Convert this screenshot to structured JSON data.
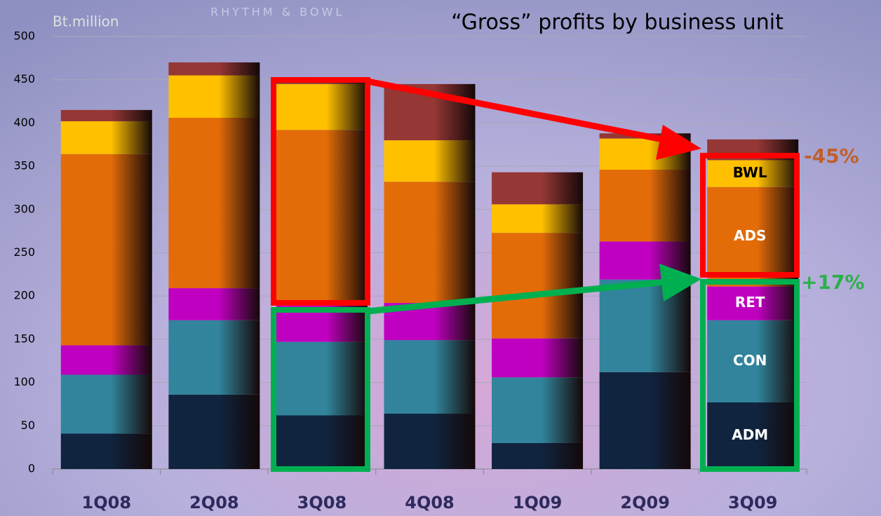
{
  "chart_data": {
    "type": "stacked_bar",
    "title": "“Gross” profits by business unit",
    "y_label": "Bt.million",
    "background_text": "RHYTHM & BOWL",
    "categories": [
      "1Q08",
      "2Q08",
      "3Q08",
      "4Q08",
      "1Q09",
      "2Q09",
      "3Q09"
    ],
    "series": [
      {
        "name": "ADM",
        "color": "#10243f",
        "values": [
          41,
          86,
          62,
          64,
          30,
          112,
          77
        ]
      },
      {
        "name": "CON",
        "color": "#31849b",
        "values": [
          68,
          86,
          85,
          85,
          76,
          107,
          95
        ]
      },
      {
        "name": "RET",
        "color": "#c000c0",
        "values": [
          34,
          37,
          45,
          43,
          45,
          44,
          39
        ]
      },
      {
        "name": "ADS",
        "color": "#e36c09",
        "values": [
          221,
          197,
          200,
          140,
          122,
          83,
          115
        ]
      },
      {
        "name": "BWL",
        "color": "#ffc000",
        "values": [
          38,
          49,
          53,
          48,
          33,
          36,
          31
        ]
      },
      {
        "name": null,
        "color": "#953735",
        "values": [
          13,
          15,
          3,
          65,
          37,
          6,
          24
        ]
      }
    ],
    "annotations": [
      "-45%",
      "+17%"
    ],
    "ylim": [
      0,
      500
    ],
    "yticks": [
      0,
      50,
      100,
      150,
      200,
      250,
      300,
      350,
      400,
      450,
      500
    ],
    "grid": true
  }
}
